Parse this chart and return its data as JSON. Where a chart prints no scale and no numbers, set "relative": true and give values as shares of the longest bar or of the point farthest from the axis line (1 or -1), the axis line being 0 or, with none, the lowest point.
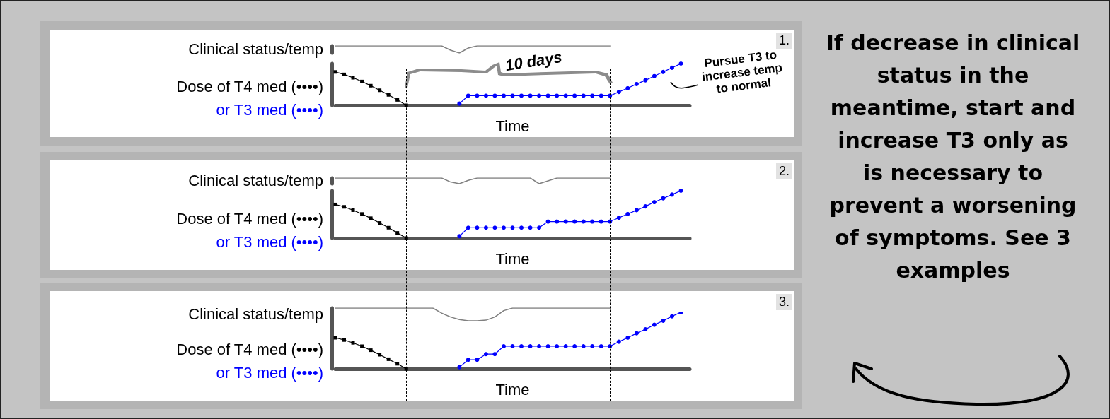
{
  "chart_data": [
    {
      "type": "line",
      "ylabel": "Clinical status/temp",
      "categories": [
        null,
        null,
        null,
        null,
        null,
        null,
        null,
        null,
        null,
        null,
        null,
        null,
        null,
        null,
        null,
        null,
        null,
        null,
        null,
        null,
        null,
        null,
        null,
        null,
        null,
        null,
        null,
        null,
        null,
        null,
        null,
        null,
        null,
        null,
        null,
        null,
        null,
        null,
        null,
        null,
        null
      ],
      "relative": true,
      "marker": "none",
      "annotations": [
        "1."
      ],
      "series": [
        {
          "color": "#808080",
          "values": [
            1,
            1,
            1,
            1,
            1,
            1,
            1,
            1,
            1,
            1,
            1,
            1,
            1,
            0.4,
            0,
            0.7,
            1,
            1,
            1,
            1,
            1,
            1,
            1,
            1,
            1,
            1,
            1,
            1,
            1,
            1,
            1,
            1,
            null,
            null,
            null,
            null,
            null,
            null,
            null,
            null,
            null
          ]
        }
      ]
    },
    {
      "type": "line",
      "xlabel": "Time",
      "categories": [
        null,
        null,
        null,
        null,
        null,
        null,
        null,
        null,
        null,
        null,
        null,
        null,
        null,
        null,
        null,
        null,
        null,
        null,
        null,
        null,
        null,
        null,
        null,
        null,
        null,
        null,
        null,
        null,
        null,
        null,
        null,
        null,
        null,
        null,
        null,
        null,
        null,
        null,
        null,
        null,
        null
      ],
      "relative": true,
      "annotations": [
        "10 days",
        "Pursue T3 to increase temp to normal"
      ],
      "series": [
        {
          "name": "Dose of T4 med (••••)",
          "color": "#000000",
          "marker": "square",
          "values": [
            0.8,
            0.74,
            0.66,
            0.57,
            0.47,
            0.36,
            0.25,
            0.13,
            0,
            null,
            null,
            null,
            null,
            null,
            null,
            null,
            null,
            null,
            null,
            null,
            null,
            null,
            null,
            null,
            null,
            null,
            null,
            null,
            null,
            null,
            null,
            null,
            null,
            null,
            null,
            null,
            null,
            null,
            null,
            null,
            null
          ]
        },
        {
          "name": "or T3 med (••••)",
          "color": "#0000ff",
          "marker": "circle",
          "values": [
            null,
            null,
            null,
            null,
            null,
            null,
            null,
            null,
            null,
            null,
            null,
            null,
            null,
            null,
            0.04,
            0.23,
            0.23,
            0.23,
            0.23,
            0.23,
            0.23,
            0.23,
            0.23,
            0.23,
            0.23,
            0.23,
            0.23,
            0.23,
            0.23,
            0.23,
            0.23,
            0.23,
            0.32,
            0.41,
            0.51,
            0.6,
            0.7,
            0.8,
            0.9,
            1,
            null
          ]
        }
      ]
    },
    {
      "type": "line",
      "ylabel": "Clinical status/temp",
      "categories": [
        null,
        null,
        null,
        null,
        null,
        null,
        null,
        null,
        null,
        null,
        null,
        null,
        null,
        null,
        null,
        null,
        null,
        null,
        null,
        null,
        null,
        null,
        null,
        null,
        null,
        null,
        null,
        null,
        null,
        null,
        null,
        null,
        null,
        null,
        null,
        null,
        null,
        null,
        null,
        null,
        null
      ],
      "relative": true,
      "marker": "none",
      "annotations": [
        "2."
      ],
      "series": [
        {
          "color": "#808080",
          "values": [
            1,
            1,
            1,
            1,
            1,
            1,
            1,
            1,
            1,
            1,
            1,
            1,
            1,
            0.3,
            0,
            0.6,
            1,
            1,
            1,
            1,
            1,
            1,
            1,
            0,
            0.5,
            1,
            1,
            1,
            1,
            1,
            1,
            1,
            null,
            null,
            null,
            null,
            null,
            null,
            null,
            null,
            null
          ]
        }
      ]
    },
    {
      "type": "line",
      "xlabel": "Time",
      "categories": [
        null,
        null,
        null,
        null,
        null,
        null,
        null,
        null,
        null,
        null,
        null,
        null,
        null,
        null,
        null,
        null,
        null,
        null,
        null,
        null,
        null,
        null,
        null,
        null,
        null,
        null,
        null,
        null,
        null,
        null,
        null,
        null,
        null,
        null,
        null,
        null,
        null,
        null,
        null,
        null,
        null
      ],
      "relative": true,
      "series": [
        {
          "name": "Dose of T4 med (••••)",
          "color": "#000000",
          "marker": "square",
          "values": [
            0.71,
            0.66,
            0.59,
            0.51,
            0.42,
            0.32,
            0.22,
            0.11,
            0,
            null,
            null,
            null,
            null,
            null,
            null,
            null,
            null,
            null,
            null,
            null,
            null,
            null,
            null,
            null,
            null,
            null,
            null,
            null,
            null,
            null,
            null,
            null,
            null,
            null,
            null,
            null,
            null,
            null,
            null,
            null,
            null
          ]
        },
        {
          "name": "or T3 med (••••)",
          "color": "#0000ff",
          "marker": "circle",
          "values": [
            null,
            null,
            null,
            null,
            null,
            null,
            null,
            null,
            null,
            null,
            null,
            null,
            null,
            null,
            0.04,
            0.22,
            0.22,
            0.22,
            0.22,
            0.22,
            0.22,
            0.22,
            0.22,
            0.22,
            0.35,
            0.35,
            0.35,
            0.35,
            0.35,
            0.35,
            0.35,
            0.35,
            0.43,
            0.51,
            0.59,
            0.67,
            0.76,
            0.84,
            0.92,
            1,
            null
          ]
        }
      ]
    },
    {
      "type": "line",
      "ylabel": "Clinical status/temp",
      "categories": [
        null,
        null,
        null,
        null,
        null,
        null,
        null,
        null,
        null,
        null,
        null,
        null,
        null,
        null,
        null,
        null,
        null,
        null,
        null,
        null,
        null,
        null,
        null,
        null,
        null,
        null,
        null,
        null,
        null,
        null,
        null,
        null,
        null,
        null,
        null,
        null,
        null,
        null,
        null,
        null,
        null
      ],
      "relative": true,
      "marker": "none",
      "annotations": [
        "3."
      ],
      "series": [
        {
          "color": "#808080",
          "values": [
            1,
            1,
            1,
            1,
            1,
            1,
            1,
            1,
            1,
            1,
            1,
            1,
            0.6,
            0.3,
            0.1,
            0,
            0,
            0.05,
            0.3,
            0.8,
            1,
            1,
            1,
            1,
            1,
            1,
            1,
            1,
            1,
            1,
            1,
            1,
            null,
            null,
            null,
            null,
            null,
            null,
            null,
            null,
            null
          ]
        }
      ]
    },
    {
      "type": "line",
      "xlabel": "Time",
      "categories": [
        null,
        null,
        null,
        null,
        null,
        null,
        null,
        null,
        null,
        null,
        null,
        null,
        null,
        null,
        null,
        null,
        null,
        null,
        null,
        null,
        null,
        null,
        null,
        null,
        null,
        null,
        null,
        null,
        null,
        null,
        null,
        null,
        null,
        null,
        null,
        null,
        null,
        null,
        null,
        null,
        null
      ],
      "relative": true,
      "series": [
        {
          "name": "Dose of T4 med (••••)",
          "color": "#000000",
          "marker": "square",
          "values": [
            0.55,
            0.51,
            0.46,
            0.4,
            0.33,
            0.25,
            0.17,
            0.09,
            0,
            null,
            null,
            null,
            null,
            null,
            null,
            null,
            null,
            null,
            null,
            null,
            null,
            null,
            null,
            null,
            null,
            null,
            null,
            null,
            null,
            null,
            null,
            null,
            null,
            null,
            null,
            null,
            null,
            null,
            null,
            null,
            null
          ]
        },
        {
          "name": "or T3 med (••••)",
          "color": "#0000ff",
          "marker": "circle",
          "values": [
            null,
            null,
            null,
            null,
            null,
            null,
            null,
            null,
            null,
            null,
            null,
            null,
            null,
            null,
            0.03,
            0.16,
            0.16,
            0.26,
            0.26,
            0.4,
            0.4,
            0.4,
            0.4,
            0.4,
            0.4,
            0.4,
            0.4,
            0.4,
            0.4,
            0.4,
            0.4,
            0.4,
            0.48,
            0.55,
            0.63,
            0.7,
            0.78,
            0.85,
            0.93,
            1,
            null
          ]
        }
      ]
    },
    {
      "type": "other",
      "annotations": [
        "If decrease in clinical status in the meantime, start and increase T3 only as is necessary to prevent a worsening of symptoms. See 3 examples"
      ]
    }
  ]
}
